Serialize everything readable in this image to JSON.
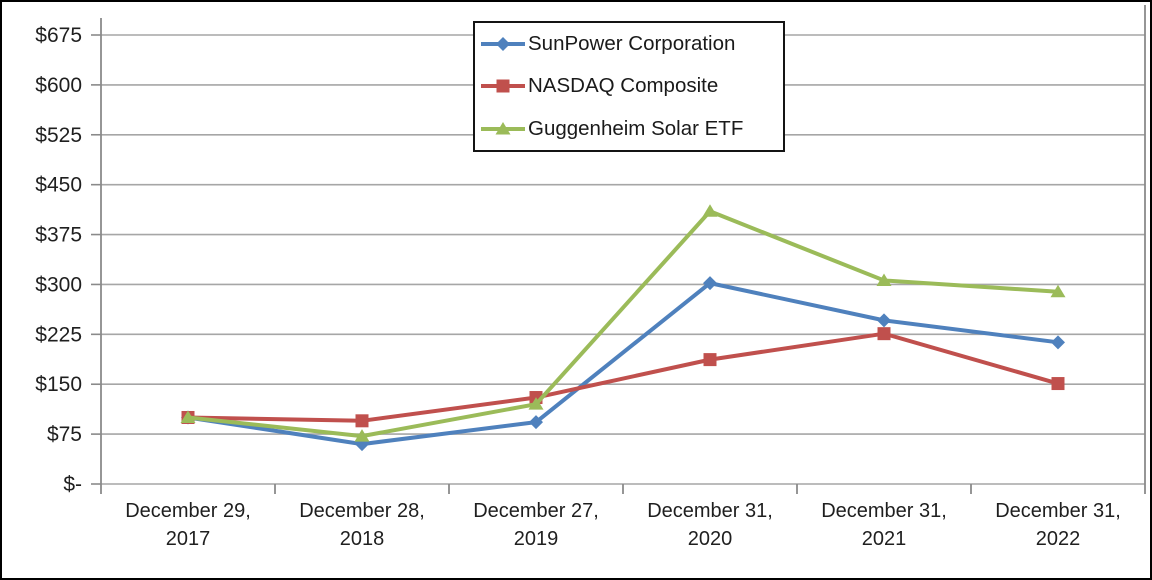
{
  "chart": {
    "background": "#FFFFFF",
    "frame_border_color": "#000000",
    "legend_border_color": "#141414",
    "grid_color": "#A6A6A6",
    "axis_color": "#8A8A8A",
    "label_color": "#1F1F1F"
  },
  "chart_data": {
    "type": "line",
    "title": "",
    "xlabel": "",
    "ylabel": "",
    "ylim": [
      0,
      675
    ],
    "y_tick_interval": 75,
    "grid": "horizontal",
    "legend_position": "inside-top-center",
    "y_axis": {
      "tick_values": [
        0,
        75,
        150,
        225,
        300,
        375,
        450,
        525,
        600,
        675
      ],
      "tick_labels": [
        "$-",
        "$75",
        "$150",
        "$225",
        "$300",
        "$375",
        "$450",
        "$525",
        "$600",
        "$675"
      ]
    },
    "categories": [
      [
        "December 29,",
        "2017"
      ],
      [
        "December 28,",
        "2018"
      ],
      [
        "December 27,",
        "2019"
      ],
      [
        "December 31,",
        "2020"
      ],
      [
        "December 31,",
        "2021"
      ],
      [
        "December 31,",
        "2022"
      ]
    ],
    "series": [
      {
        "name": "SunPower Corporation",
        "color": "#4F81BD",
        "marker": "diamond",
        "values": [
          100,
          60,
          93,
          302,
          246,
          213
        ]
      },
      {
        "name": "NASDAQ Composite",
        "color": "#C0504D",
        "marker": "square",
        "values": [
          100,
          95,
          130,
          187,
          226,
          151
        ]
      },
      {
        "name": "Guggenheim Solar ETF",
        "color": "#9BBB59",
        "marker": "triangle",
        "values": [
          100,
          72,
          120,
          410,
          306,
          289
        ]
      }
    ]
  }
}
